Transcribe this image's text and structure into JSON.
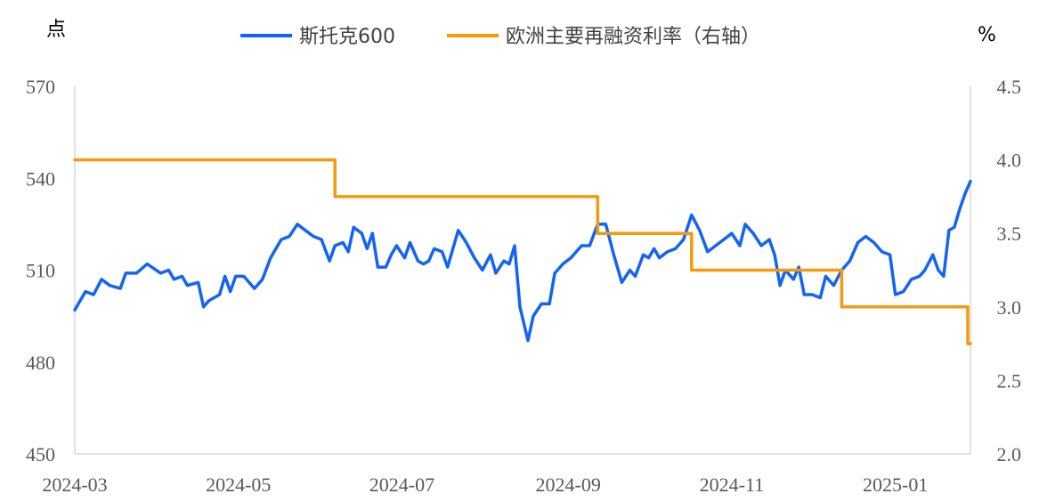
{
  "chart_data": {
    "type": "line",
    "title": "",
    "left_axis_unit": "点",
    "right_axis_unit": "%",
    "x_ticks": [
      "2024-03",
      "2024-05",
      "2024-07",
      "2024-09",
      "2024-11",
      "2025-01"
    ],
    "x_range": [
      "2024-03-01",
      "2025-01-29"
    ],
    "y_left": {
      "ticks": [
        "450",
        "480",
        "510",
        "540",
        "570"
      ],
      "range": [
        450,
        570
      ]
    },
    "y_right": {
      "ticks": [
        "2.0",
        "2.5",
        "3.0",
        "3.5",
        "4.0",
        "4.5"
      ],
      "range": [
        2.0,
        4.5
      ]
    },
    "legend_position": "top-center",
    "grid": false,
    "series": [
      {
        "name": "斯托克600",
        "axis": "left",
        "color": "#1464F4",
        "points": [
          [
            "2024-03-01",
            497
          ],
          [
            "2024-03-05",
            503
          ],
          [
            "2024-03-08",
            502
          ],
          [
            "2024-03-11",
            507
          ],
          [
            "2024-03-14",
            505
          ],
          [
            "2024-03-18",
            504
          ],
          [
            "2024-03-20",
            509
          ],
          [
            "2024-03-24",
            509
          ],
          [
            "2024-03-28",
            512
          ],
          [
            "2024-04-02",
            509
          ],
          [
            "2024-04-05",
            510
          ],
          [
            "2024-04-07",
            507
          ],
          [
            "2024-04-10",
            508
          ],
          [
            "2024-04-12",
            505
          ],
          [
            "2024-04-16",
            506
          ],
          [
            "2024-04-18",
            498
          ],
          [
            "2024-04-20",
            500
          ],
          [
            "2024-04-24",
            502
          ],
          [
            "2024-04-26",
            508
          ],
          [
            "2024-04-28",
            503
          ],
          [
            "2024-04-30",
            508
          ],
          [
            "2024-05-03",
            508
          ],
          [
            "2024-05-07",
            504
          ],
          [
            "2024-05-10",
            507
          ],
          [
            "2024-05-13",
            514
          ],
          [
            "2024-05-15",
            517
          ],
          [
            "2024-05-17",
            520
          ],
          [
            "2024-05-20",
            521
          ],
          [
            "2024-05-23",
            525
          ],
          [
            "2024-05-26",
            523
          ],
          [
            "2024-05-29",
            521
          ],
          [
            "2024-06-01",
            520
          ],
          [
            "2024-06-04",
            513
          ],
          [
            "2024-06-06",
            518
          ],
          [
            "2024-06-09",
            519
          ],
          [
            "2024-06-11",
            516
          ],
          [
            "2024-06-13",
            524
          ],
          [
            "2024-06-16",
            522
          ],
          [
            "2024-06-18",
            517
          ],
          [
            "2024-06-20",
            522
          ],
          [
            "2024-06-22",
            511
          ],
          [
            "2024-06-25",
            511
          ],
          [
            "2024-06-27",
            515
          ],
          [
            "2024-06-29",
            518
          ],
          [
            "2024-07-02",
            514
          ],
          [
            "2024-07-04",
            519
          ],
          [
            "2024-07-07",
            513
          ],
          [
            "2024-07-09",
            512
          ],
          [
            "2024-07-11",
            513
          ],
          [
            "2024-07-13",
            517
          ],
          [
            "2024-07-16",
            516
          ],
          [
            "2024-07-18",
            511
          ],
          [
            "2024-07-22",
            523
          ],
          [
            "2024-07-25",
            519
          ],
          [
            "2024-07-28",
            514
          ],
          [
            "2024-07-31",
            510
          ],
          [
            "2024-08-03",
            515
          ],
          [
            "2024-08-05",
            509
          ],
          [
            "2024-08-08",
            513
          ],
          [
            "2024-08-10",
            512
          ],
          [
            "2024-08-12",
            518
          ],
          [
            "2024-08-14",
            498
          ],
          [
            "2024-08-17",
            487
          ],
          [
            "2024-08-19",
            495
          ],
          [
            "2024-08-22",
            499
          ],
          [
            "2024-08-25",
            499
          ],
          [
            "2024-08-27",
            509
          ],
          [
            "2024-08-30",
            512
          ],
          [
            "2024-09-02",
            514
          ],
          [
            "2024-09-06",
            518
          ],
          [
            "2024-09-09",
            518
          ],
          [
            "2024-09-12",
            525
          ],
          [
            "2024-09-15",
            525
          ],
          [
            "2024-09-18",
            515
          ],
          [
            "2024-09-21",
            506
          ],
          [
            "2024-09-24",
            510
          ],
          [
            "2024-09-26",
            508
          ],
          [
            "2024-09-29",
            515
          ],
          [
            "2024-10-01",
            514
          ],
          [
            "2024-10-03",
            517
          ],
          [
            "2024-10-05",
            514
          ],
          [
            "2024-10-08",
            516
          ],
          [
            "2024-10-11",
            517
          ],
          [
            "2024-10-14",
            520
          ],
          [
            "2024-10-17",
            528
          ],
          [
            "2024-10-20",
            523
          ],
          [
            "2024-10-23",
            516
          ],
          [
            "2024-10-26",
            518
          ],
          [
            "2024-10-29",
            520
          ],
          [
            "2024-11-01",
            522
          ],
          [
            "2024-11-04",
            518
          ],
          [
            "2024-11-06",
            525
          ],
          [
            "2024-11-09",
            522
          ],
          [
            "2024-11-12",
            518
          ],
          [
            "2024-11-15",
            520
          ],
          [
            "2024-11-17",
            515
          ],
          [
            "2024-11-19",
            505
          ],
          [
            "2024-11-21",
            510
          ],
          [
            "2024-11-24",
            507
          ],
          [
            "2024-11-26",
            511
          ],
          [
            "2024-11-28",
            502
          ],
          [
            "2024-12-01",
            502
          ],
          [
            "2024-12-04",
            501
          ],
          [
            "2024-12-06",
            508
          ],
          [
            "2024-12-09",
            505
          ],
          [
            "2024-12-12",
            510
          ],
          [
            "2024-12-15",
            513
          ],
          [
            "2024-12-18",
            519
          ],
          [
            "2024-12-21",
            521
          ],
          [
            "2024-12-24",
            519
          ],
          [
            "2024-12-27",
            516
          ],
          [
            "2024-12-30",
            515
          ],
          [
            "2025-01-01",
            502
          ],
          [
            "2025-01-04",
            503
          ],
          [
            "2025-01-07",
            507
          ],
          [
            "2025-01-10",
            508
          ],
          [
            "2025-01-12",
            510
          ],
          [
            "2025-01-15",
            515
          ],
          [
            "2025-01-17",
            510
          ],
          [
            "2025-01-19",
            508
          ],
          [
            "2025-01-21",
            523
          ],
          [
            "2025-01-23",
            524
          ],
          [
            "2025-01-25",
            530
          ],
          [
            "2025-01-27",
            535
          ],
          [
            "2025-01-29",
            539
          ]
        ]
      },
      {
        "name": "欧洲主要再融资利率（右轴）",
        "axis": "right",
        "color": "#F59A0C",
        "points": [
          [
            "2024-03-01",
            4.0
          ],
          [
            "2024-06-06",
            4.0
          ],
          [
            "2024-06-06",
            3.75
          ],
          [
            "2024-09-12",
            3.75
          ],
          [
            "2024-09-12",
            3.5
          ],
          [
            "2024-10-17",
            3.5
          ],
          [
            "2024-10-17",
            3.25
          ],
          [
            "2024-12-12",
            3.25
          ],
          [
            "2024-12-12",
            3.0
          ],
          [
            "2025-01-28",
            3.0
          ],
          [
            "2025-01-28",
            2.75
          ],
          [
            "2025-01-29",
            2.75
          ]
        ]
      }
    ]
  }
}
